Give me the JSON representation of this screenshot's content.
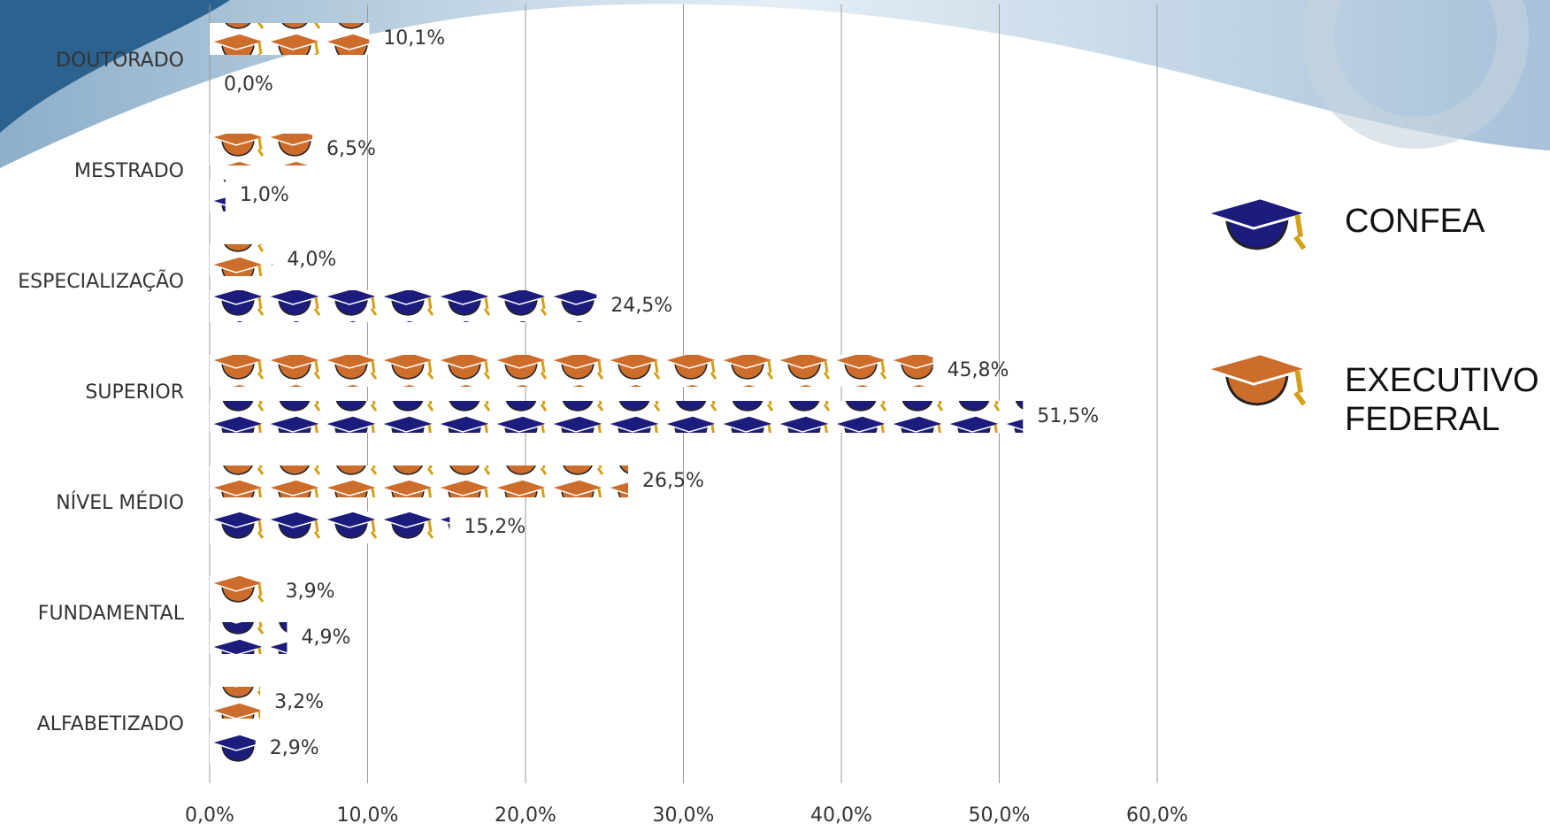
{
  "chart_data": {
    "type": "bar",
    "orientation": "horizontal",
    "categories": [
      "DOUTORADO",
      "MESTRADO",
      "ESPECIALIZAÇÃO",
      "SUPERIOR",
      "NÍVEL MÉDIO",
      "FUNDAMENTAL",
      "ALFABETIZADO"
    ],
    "series": [
      {
        "name": "CONFEA",
        "color": "#1c1c7c",
        "values": [
          0.0,
          1.0,
          24.5,
          51.5,
          15.2,
          4.9,
          2.9
        ],
        "value_labels": [
          "0,0%",
          "1,0%",
          "24,5%",
          "51,5%",
          "15,2%",
          "4,9%",
          "2,9%"
        ]
      },
      {
        "name": "EXECUTIVO FEDERAL",
        "color": "#cc6d2c",
        "values": [
          10.1,
          6.5,
          4.0,
          45.8,
          26.5,
          3.9,
          3.2
        ],
        "value_labels": [
          "10,1%",
          "6,5%",
          "4,0%",
          "45,8%",
          "26,5%",
          "3,9%",
          "3,2%"
        ]
      }
    ],
    "xlim": [
      0,
      60
    ],
    "xticks": [
      {
        "value": 0,
        "label": "0,0%"
      },
      {
        "value": 10,
        "label": "10,0%"
      },
      {
        "value": 20,
        "label": "20,0%"
      },
      {
        "value": 30,
        "label": "30,0%"
      },
      {
        "value": 40,
        "label": "40,0%"
      },
      {
        "value": 50,
        "label": "50,0%"
      },
      {
        "value": 60,
        "label": "60,0%"
      }
    ],
    "grid": true,
    "legend": "right"
  }
}
